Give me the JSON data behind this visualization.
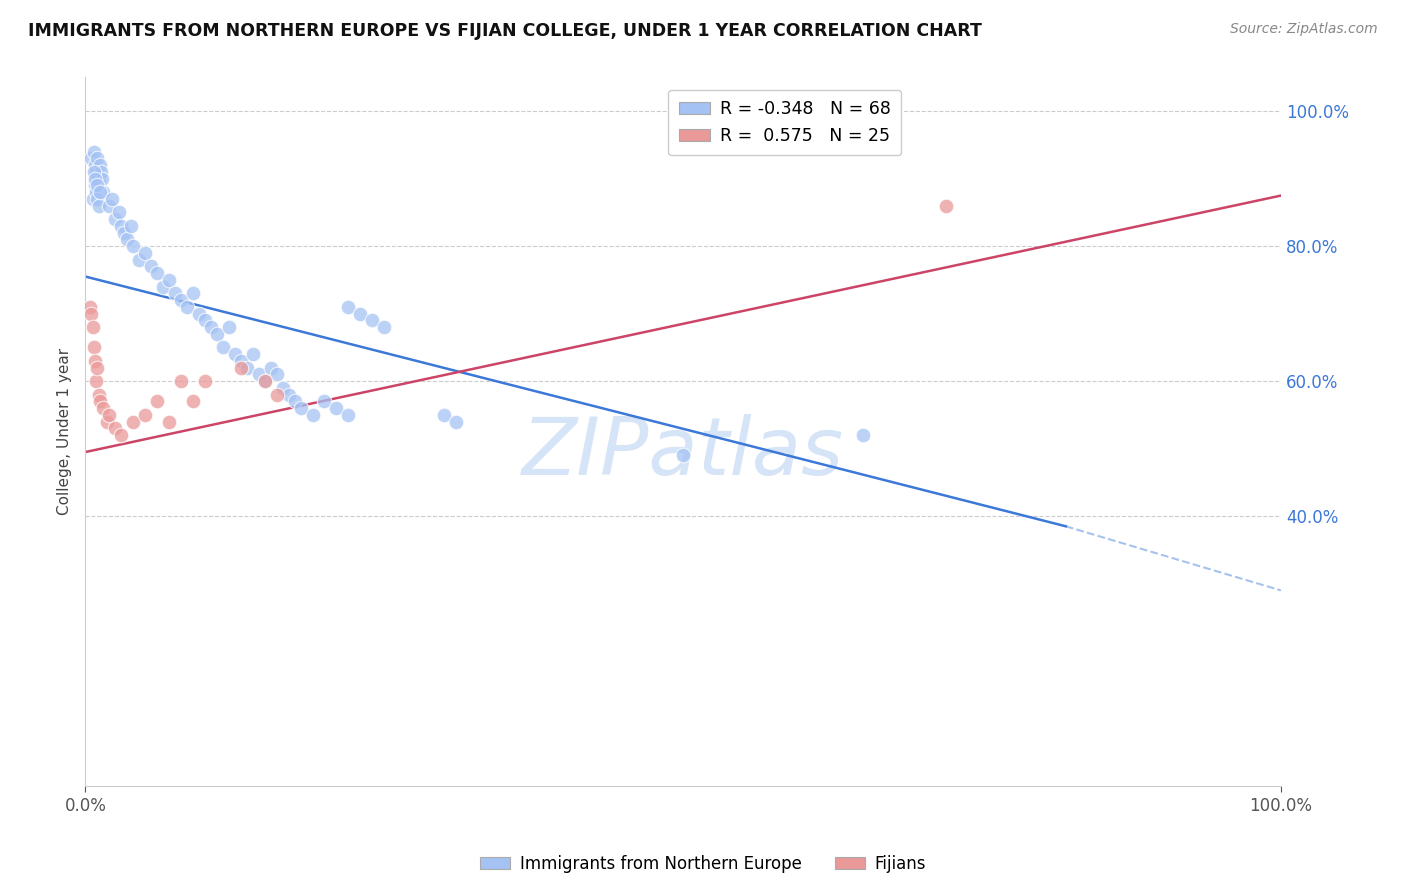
{
  "title": "IMMIGRANTS FROM NORTHERN EUROPE VS FIJIAN COLLEGE, UNDER 1 YEAR CORRELATION CHART",
  "source": "Source: ZipAtlas.com",
  "ylabel": "College, Under 1 year",
  "blue_R": "-0.348",
  "blue_N": "68",
  "pink_R": "0.575",
  "pink_N": "25",
  "legend_label_blue": "Immigrants from Northern Europe",
  "legend_label_pink": "Fijians",
  "blue_color": "#a4c2f4",
  "pink_color": "#ea9999",
  "blue_line_color": "#3c78d8",
  "pink_line_color": "#cc4466",
  "background_color": "#ffffff",
  "watermark_color": "#d6e4f7",
  "blue_x": [
    0.005,
    0.007,
    0.008,
    0.009,
    0.01,
    0.011,
    0.012,
    0.013,
    0.014,
    0.015,
    0.006,
    0.008,
    0.009,
    0.01,
    0.011,
    0.007,
    0.008,
    0.01,
    0.012,
    0.02,
    0.022,
    0.025,
    0.028,
    0.03,
    0.032,
    0.035,
    0.038,
    0.04,
    0.045,
    0.05,
    0.055,
    0.06,
    0.065,
    0.07,
    0.075,
    0.08,
    0.085,
    0.09,
    0.095,
    0.1,
    0.105,
    0.11,
    0.115,
    0.12,
    0.125,
    0.13,
    0.135,
    0.14,
    0.145,
    0.15,
    0.155,
    0.16,
    0.165,
    0.17,
    0.175,
    0.18,
    0.19,
    0.2,
    0.21,
    0.22,
    0.3,
    0.31,
    0.5,
    0.65,
    0.22,
    0.23,
    0.24,
    0.25
  ],
  "blue_y": [
    0.93,
    0.94,
    0.92,
    0.91,
    0.93,
    0.9,
    0.92,
    0.91,
    0.9,
    0.88,
    0.87,
    0.89,
    0.88,
    0.87,
    0.86,
    0.91,
    0.9,
    0.89,
    0.88,
    0.86,
    0.87,
    0.84,
    0.85,
    0.83,
    0.82,
    0.81,
    0.83,
    0.8,
    0.78,
    0.79,
    0.77,
    0.76,
    0.74,
    0.75,
    0.73,
    0.72,
    0.71,
    0.73,
    0.7,
    0.69,
    0.68,
    0.67,
    0.65,
    0.68,
    0.64,
    0.63,
    0.62,
    0.64,
    0.61,
    0.6,
    0.62,
    0.61,
    0.59,
    0.58,
    0.57,
    0.56,
    0.55,
    0.57,
    0.56,
    0.55,
    0.55,
    0.54,
    0.49,
    0.52,
    0.71,
    0.7,
    0.69,
    0.68
  ],
  "pink_x": [
    0.004,
    0.005,
    0.006,
    0.007,
    0.008,
    0.009,
    0.01,
    0.011,
    0.012,
    0.015,
    0.018,
    0.02,
    0.025,
    0.03,
    0.04,
    0.05,
    0.06,
    0.07,
    0.08,
    0.09,
    0.1,
    0.13,
    0.15,
    0.16,
    0.72
  ],
  "pink_y": [
    0.71,
    0.7,
    0.68,
    0.65,
    0.63,
    0.6,
    0.62,
    0.58,
    0.57,
    0.56,
    0.54,
    0.55,
    0.53,
    0.52,
    0.54,
    0.55,
    0.57,
    0.54,
    0.6,
    0.57,
    0.6,
    0.62,
    0.6,
    0.58,
    0.86
  ],
  "blue_line": {
    "x0": 0.0,
    "y0": 0.755,
    "x1": 0.82,
    "y1": 0.385,
    "x_dash_end": 1.0,
    "y_dash_end": 0.29
  },
  "pink_line": {
    "x0": 0.0,
    "y0": 0.495,
    "x1": 1.0,
    "y1": 0.875
  },
  "xlim": [
    0.0,
    1.0
  ],
  "ylim": [
    0.0,
    1.05
  ],
  "ytick_positions": [
    0.4,
    0.6,
    0.8,
    1.0
  ],
  "ytick_labels": [
    "40.0%",
    "60.0%",
    "80.0%",
    "100.0%"
  ],
  "xtick_positions": [
    0.0,
    1.0
  ],
  "xtick_labels": [
    "0.0%",
    "100.0%"
  ]
}
